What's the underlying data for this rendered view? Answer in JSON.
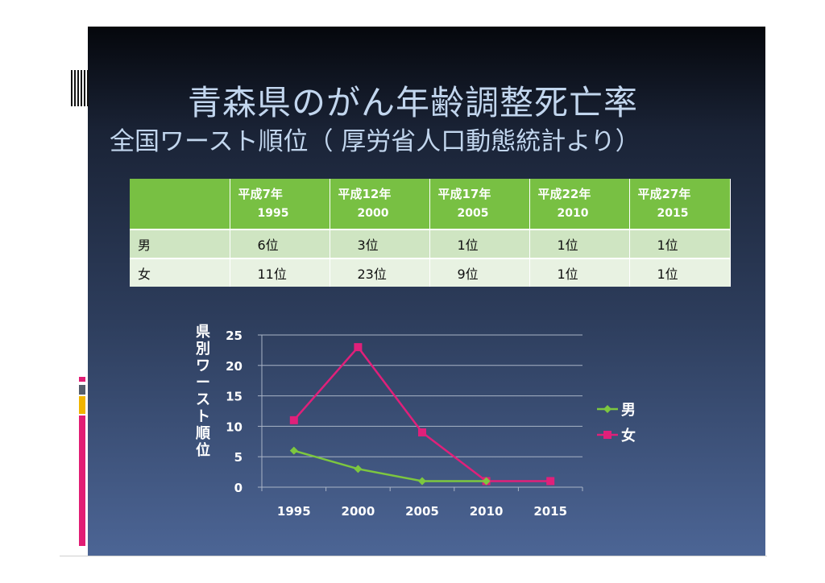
{
  "slide": {
    "title_line1": "青森県のがん年齢調整死亡率",
    "title_line2": "全国ワースト順位（ 厚労省人口動態統計より）"
  },
  "table": {
    "headers": [
      {
        "era": "",
        "year": ""
      },
      {
        "era": "平成7年",
        "year": "1995"
      },
      {
        "era": "平成12年",
        "year": "2000"
      },
      {
        "era": "平成17年",
        "year": "2005"
      },
      {
        "era": "平成22年",
        "year": "2010"
      },
      {
        "era": "平成27年",
        "year": "2015"
      }
    ],
    "rows": [
      {
        "label": "男",
        "values": [
          "6位",
          "3位",
          "1位",
          "1位",
          "1位"
        ]
      },
      {
        "label": "女",
        "values": [
          "11位",
          "23位",
          "9位",
          "1位",
          "1位"
        ]
      }
    ]
  },
  "chart_data": {
    "type": "line",
    "title": "",
    "xlabel": "",
    "ylabel": "県別ワースト順位",
    "categories": [
      "1995",
      "2000",
      "2005",
      "2010",
      "2015"
    ],
    "ylim": [
      0,
      25
    ],
    "yticks": [
      0,
      5,
      10,
      15,
      20,
      25
    ],
    "grid": true,
    "legend_position": "right",
    "series": [
      {
        "name": "男",
        "values": [
          6,
          3,
          1,
          1,
          null
        ],
        "color": "#7dc73f",
        "marker": "diamond"
      },
      {
        "name": "女",
        "values": [
          11,
          23,
          9,
          1,
          1
        ],
        "color": "#e0207a",
        "marker": "square"
      }
    ]
  },
  "colors": {
    "table_header": "#78c043",
    "accent_pink": "#e11d74",
    "accent_yellow": "#f0b400",
    "title_text": "#c2d6ee"
  }
}
